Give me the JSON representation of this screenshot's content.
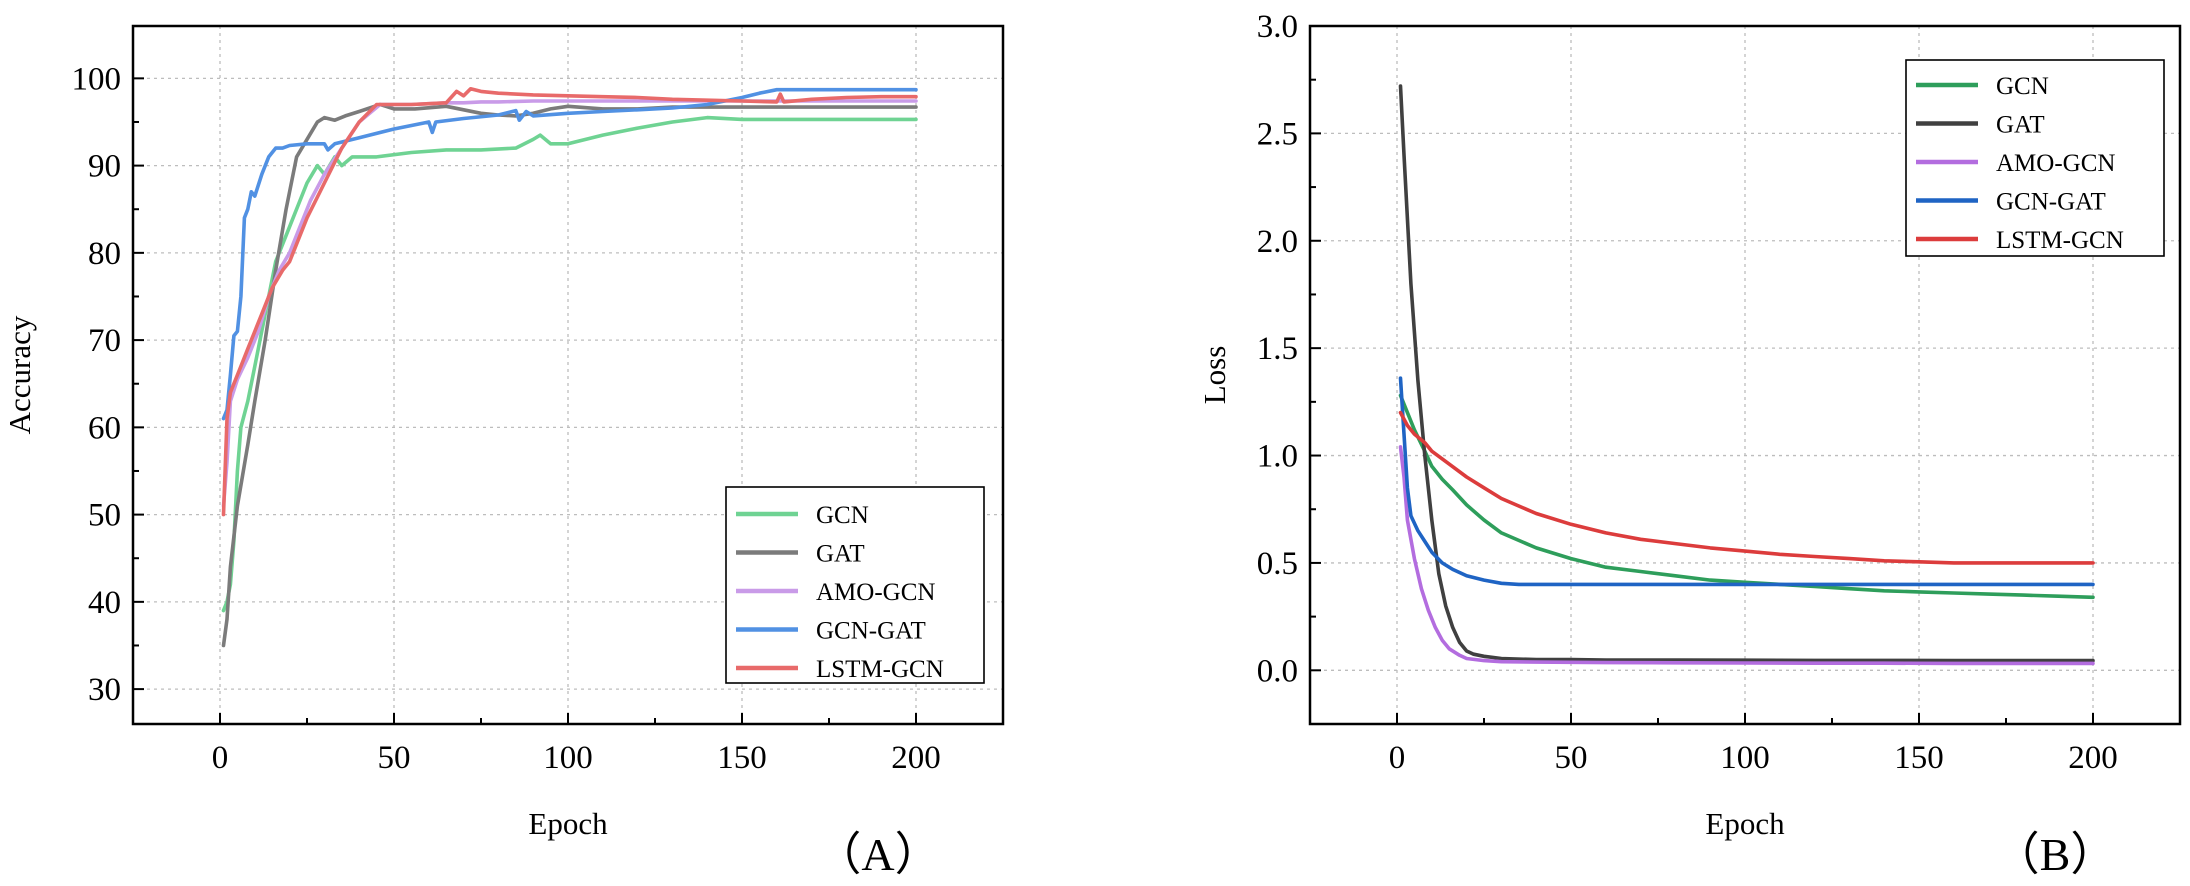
{
  "figure": {
    "panels": [
      "A",
      "B"
    ]
  },
  "chart_data": [
    {
      "type": "line",
      "panel_label": "（A）",
      "title": "",
      "xlabel": "Epoch",
      "ylabel": "Accuracy",
      "xlim": [
        -25,
        225
      ],
      "ylim": [
        26,
        106
      ],
      "xticks": [
        0,
        50,
        100,
        150,
        200
      ],
      "yticks": [
        30,
        40,
        50,
        60,
        70,
        80,
        90,
        100
      ],
      "grid": true,
      "legend_position": "bottom-right",
      "series": [
        {
          "name": "GCN",
          "color": "#6fd393",
          "x": [
            1,
            2,
            3,
            4,
            5,
            6,
            8,
            10,
            13,
            16,
            20,
            25,
            28,
            30,
            33,
            35,
            38,
            45,
            55,
            65,
            75,
            85,
            90,
            92,
            95,
            100,
            110,
            120,
            130,
            140,
            150,
            160,
            170,
            180,
            190,
            200
          ],
          "y": [
            39,
            40,
            42,
            47,
            55,
            60,
            63,
            67,
            73,
            79,
            83,
            88,
            90,
            89,
            91,
            90,
            91,
            91,
            91.5,
            91.8,
            91.8,
            92,
            93,
            93.5,
            92.5,
            92.5,
            93.5,
            94.3,
            95,
            95.5,
            95.3,
            95.3,
            95.3,
            95.3,
            95.3,
            95.3
          ]
        },
        {
          "name": "GAT",
          "color": "#7b7b7b",
          "x": [
            1,
            2,
            3,
            5,
            8,
            10,
            13,
            16,
            19,
            22,
            25,
            28,
            30,
            33,
            36,
            40,
            46,
            50,
            56,
            65,
            70,
            75,
            80,
            85,
            90,
            95,
            100,
            110,
            120,
            130,
            140,
            150,
            160,
            170,
            180,
            190,
            200
          ],
          "y": [
            35,
            38,
            44,
            51,
            58,
            63,
            70,
            78,
            85,
            91,
            93,
            95,
            95.5,
            95.2,
            95.7,
            96.2,
            97,
            96.5,
            96.5,
            96.8,
            96.4,
            96,
            95.8,
            95.7,
            96,
            96.5,
            96.8,
            96.5,
            96.5,
            96.7,
            96.7,
            96.7,
            96.7,
            96.7,
            96.7,
            96.7,
            96.7
          ]
        },
        {
          "name": "AMO-GCN",
          "color": "#c99be8",
          "x": [
            1,
            2,
            3,
            5,
            8,
            11,
            14,
            17,
            20,
            23,
            26,
            30,
            35,
            40,
            46,
            50,
            55,
            60,
            65,
            70,
            75,
            80,
            90,
            100,
            110,
            120,
            130,
            140,
            150,
            160,
            170,
            180,
            190,
            200
          ],
          "y": [
            51,
            56,
            63,
            65.5,
            68,
            71,
            75,
            78,
            80,
            83,
            86,
            89,
            92,
            95,
            97,
            97,
            97,
            97.1,
            97.2,
            97.2,
            97.3,
            97.3,
            97.4,
            97.4,
            97.4,
            97.4,
            97.4,
            97.4,
            97.4,
            97.4,
            97.4,
            97.4,
            97.4,
            97.4
          ]
        },
        {
          "name": "GCN-GAT",
          "color": "#5191e3",
          "x": [
            1,
            2,
            3,
            4,
            5,
            6,
            7,
            8,
            9,
            10,
            12,
            14,
            16,
            18,
            20,
            25,
            30,
            31,
            33,
            40,
            50,
            60,
            61,
            62,
            70,
            80,
            85,
            86,
            88,
            90,
            100,
            110,
            120,
            130,
            140,
            150,
            155,
            160,
            170,
            180,
            190,
            200
          ],
          "y": [
            61,
            62,
            66,
            70.5,
            71,
            75,
            84,
            85,
            87,
            86.5,
            89,
            91,
            92,
            92,
            92.3,
            92.5,
            92.5,
            91.8,
            92.5,
            93.2,
            94.2,
            95,
            93.8,
            95,
            95.4,
            95.8,
            96.3,
            95.2,
            96.2,
            95.7,
            96,
            96.2,
            96.4,
            96.6,
            97,
            97.8,
            98.3,
            98.7,
            98.7,
            98.7,
            98.7,
            98.7
          ]
        },
        {
          "name": "LSTM-GCN",
          "color": "#e86a6a",
          "x": [
            1,
            2,
            3,
            4,
            5,
            6,
            8,
            10,
            12,
            15,
            18,
            20,
            25,
            30,
            35,
            40,
            45,
            50,
            55,
            60,
            65,
            68,
            70,
            72,
            75,
            80,
            90,
            100,
            110,
            120,
            130,
            140,
            150,
            160,
            161,
            162,
            170,
            180,
            190,
            200
          ],
          "y": [
            50,
            61,
            64,
            65,
            66,
            67,
            69,
            71,
            73,
            76,
            78,
            79,
            84,
            88,
            92,
            95,
            97,
            97,
            97,
            97.1,
            97.2,
            98.5,
            98,
            98.8,
            98.5,
            98.3,
            98.1,
            98,
            97.9,
            97.8,
            97.6,
            97.5,
            97.4,
            97.3,
            98.2,
            97.3,
            97.6,
            97.8,
            97.9,
            97.9
          ]
        }
      ]
    },
    {
      "type": "line",
      "panel_label": "（B）",
      "title": "",
      "xlabel": "Epoch",
      "ylabel": "Loss",
      "xlim": [
        -25,
        225
      ],
      "ylim": [
        -0.25,
        3.0
      ],
      "xticks": [
        0,
        50,
        100,
        150,
        200
      ],
      "yticks": [
        0.0,
        0.5,
        1.0,
        1.5,
        2.0,
        2.5,
        3.0
      ],
      "ytick_labels": [
        "0.0",
        "0.5",
        "1.0",
        "1.5",
        "2.0",
        "2.5",
        "3.0"
      ],
      "grid": true,
      "legend_position": "top-right",
      "series": [
        {
          "name": "GCN",
          "color": "#2e9e5b",
          "x": [
            1,
            3,
            5,
            8,
            10,
            13,
            16,
            20,
            25,
            30,
            40,
            50,
            60,
            70,
            80,
            90,
            100,
            110,
            120,
            130,
            140,
            150,
            160,
            170,
            180,
            190,
            200
          ],
          "y": [
            1.28,
            1.2,
            1.12,
            1.02,
            0.95,
            0.89,
            0.84,
            0.77,
            0.7,
            0.64,
            0.57,
            0.52,
            0.48,
            0.46,
            0.44,
            0.42,
            0.41,
            0.4,
            0.39,
            0.38,
            0.37,
            0.365,
            0.36,
            0.355,
            0.35,
            0.345,
            0.34
          ]
        },
        {
          "name": "GAT",
          "color": "#404040",
          "x": [
            1,
            2,
            4,
            6,
            8,
            10,
            12,
            14,
            16,
            18,
            20,
            22,
            25,
            30,
            40,
            50,
            60,
            80,
            100,
            120,
            140,
            160,
            180,
            200
          ],
          "y": [
            2.72,
            2.4,
            1.8,
            1.35,
            1.0,
            0.7,
            0.45,
            0.3,
            0.2,
            0.13,
            0.09,
            0.075,
            0.065,
            0.055,
            0.05,
            0.05,
            0.048,
            0.048,
            0.047,
            0.046,
            0.046,
            0.045,
            0.045,
            0.045
          ]
        },
        {
          "name": "AMO-GCN",
          "color": "#b36ddf",
          "x": [
            1,
            2,
            3,
            5,
            7,
            9,
            11,
            13,
            15,
            18,
            20,
            25,
            30,
            40,
            60,
            80,
            100,
            120,
            140,
            160,
            180,
            200
          ],
          "y": [
            1.04,
            0.9,
            0.7,
            0.52,
            0.38,
            0.28,
            0.2,
            0.14,
            0.1,
            0.07,
            0.055,
            0.045,
            0.04,
            0.038,
            0.036,
            0.035,
            0.034,
            0.033,
            0.033,
            0.032,
            0.032,
            0.032
          ]
        },
        {
          "name": "GCN-GAT",
          "color": "#1f64c4",
          "x": [
            1,
            2,
            3,
            4,
            6,
            8,
            10,
            13,
            16,
            20,
            25,
            30,
            35,
            40,
            60,
            80,
            100,
            120,
            140,
            160,
            180,
            200
          ],
          "y": [
            1.36,
            1.1,
            0.85,
            0.72,
            0.65,
            0.6,
            0.55,
            0.5,
            0.47,
            0.44,
            0.42,
            0.405,
            0.4,
            0.4,
            0.4,
            0.4,
            0.4,
            0.4,
            0.4,
            0.4,
            0.4,
            0.4
          ]
        },
        {
          "name": "LSTM-GCN",
          "color": "#dc3c3c",
          "x": [
            1,
            3,
            5,
            8,
            10,
            15,
            20,
            25,
            30,
            40,
            50,
            60,
            70,
            80,
            90,
            100,
            110,
            120,
            130,
            140,
            150,
            160,
            170,
            180,
            190,
            200
          ],
          "y": [
            1.2,
            1.14,
            1.1,
            1.06,
            1.02,
            0.96,
            0.9,
            0.85,
            0.8,
            0.73,
            0.68,
            0.64,
            0.61,
            0.59,
            0.57,
            0.555,
            0.54,
            0.53,
            0.52,
            0.51,
            0.505,
            0.5,
            0.5,
            0.5,
            0.5,
            0.5
          ]
        }
      ]
    }
  ]
}
